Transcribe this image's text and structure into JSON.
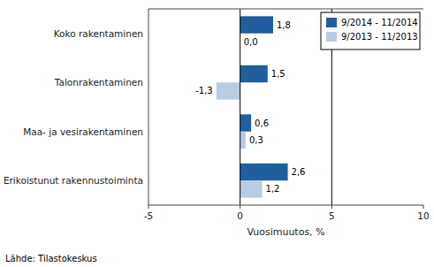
{
  "chart_data": {
    "type": "bar",
    "orientation": "horizontal",
    "categories": [
      "Erikoistunut rakennustoiminta",
      "Maa- ja vesirakentaminen",
      "Talonrakentaminen",
      "Koko rakentaminen"
    ],
    "series": [
      {
        "name": "9/2014 - 11/2014",
        "color": "#1f5f9e",
        "values": [
          2.6,
          0.6,
          1.5,
          1.8
        ],
        "value_labels": [
          "2,6",
          "0,6",
          "1,5",
          "1,8"
        ]
      },
      {
        "name": "9/2013 - 11/2013",
        "color": "#b8cce4",
        "values": [
          1.2,
          0.3,
          -1.3,
          0.0
        ],
        "value_labels": [
          "1,2",
          "0,3",
          "-1,3",
          "0,0"
        ]
      }
    ],
    "xlim": [
      -5,
      10
    ],
    "xticks": [
      -5,
      0,
      5,
      10
    ],
    "x_label": "Vuosimuutos, %",
    "footnote": "Lähde: Tilastokeskus",
    "data_labels": true,
    "legend": "upper right",
    "grid": false
  }
}
